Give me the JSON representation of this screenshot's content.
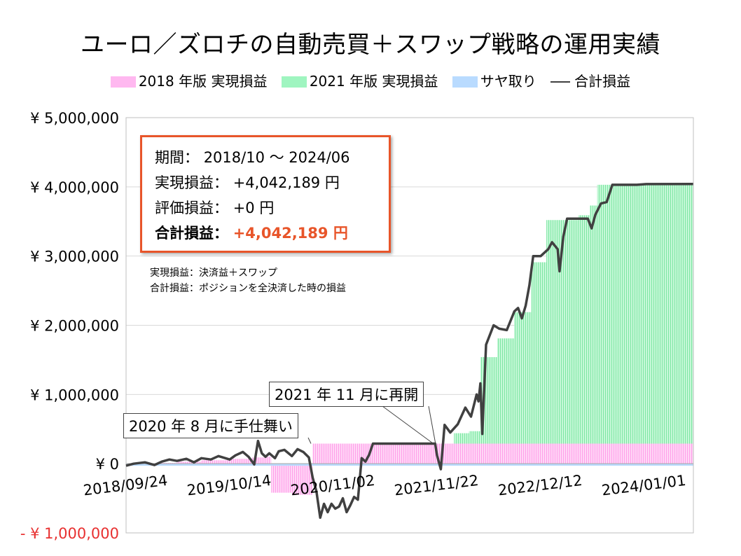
{
  "title": "ユーロ／ズロチの自動売買＋スワップ戦略の運用実績",
  "legend": [
    {
      "label": "2018 年版 実現損益",
      "color": "#ffb8f0"
    },
    {
      "label": "2021 年版 実現損益",
      "color": "#9ff5c0"
    },
    {
      "label": "サヤ取り",
      "color": "#b9dbff"
    },
    {
      "label": "合計損益",
      "color": "#404040"
    }
  ],
  "infobox": {
    "period_label": "期間：",
    "period_value": "2018/10 ～ 2024/06",
    "realized_label": "実現損益：",
    "realized_value": "+4,042,189 円",
    "unrealized_label": "評価損益：",
    "unrealized_value": "+0 円",
    "total_label": "合計損益：",
    "total_value": "+4,042,189 円"
  },
  "definitions": [
    "実現損益：決済益＋スワップ",
    "合計損益：ポジションを全決済した時の損益"
  ],
  "annotations": [
    {
      "label": "2020 年 8 月に手仕舞い"
    },
    {
      "label": "2021 年 11 月に再開"
    }
  ],
  "chart_data": {
    "type": "area",
    "ylim": [
      -1000000,
      5000000
    ],
    "y_ticks": [
      {
        "value": 5000000,
        "label": "¥ 5,000,000"
      },
      {
        "value": 4000000,
        "label": "¥ 4,000,000"
      },
      {
        "value": 3000000,
        "label": "¥ 3,000,000"
      },
      {
        "value": 2000000,
        "label": "¥ 2,000,000"
      },
      {
        "value": 1000000,
        "label": "¥ 1,000,000"
      },
      {
        "value": 0,
        "label": "¥ 0"
      },
      {
        "value": -1000000,
        "label": "- ¥ 1,000,000"
      }
    ],
    "x_ticks": [
      {
        "date": "2018-09-24",
        "label": "2018/09/24"
      },
      {
        "date": "2019-10-14",
        "label": "2019/10/14"
      },
      {
        "date": "2020-11-02",
        "label": "2020/11/02"
      },
      {
        "date": "2021-11-22",
        "label": "2021/11/22"
      },
      {
        "date": "2022-12-12",
        "label": "2022/12/12"
      },
      {
        "date": "2024-01-01",
        "label": "2024/01/01"
      }
    ],
    "xlim": [
      "2018-09-24",
      "2024-07-01"
    ],
    "grid": "horizontal",
    "series": [
      {
        "name": "2018 年版 実現損益",
        "color": "#ffb8f0",
        "points": [
          [
            "2018-09-24",
            0
          ],
          [
            "2019-01-14",
            10000
          ],
          [
            "2019-04-01",
            30000
          ],
          [
            "2019-07-01",
            50000
          ],
          [
            "2019-10-14",
            70000
          ],
          [
            "2020-01-06",
            90000
          ],
          [
            "2020-02-24",
            100000
          ],
          [
            "2020-03-16",
            -420000
          ],
          [
            "2020-06-01",
            -450000
          ],
          [
            "2020-08-03",
            -450000
          ],
          [
            "2020-08-17",
            290000
          ],
          [
            "2024-06-30",
            290000
          ]
        ]
      },
      {
        "name": "2021 年版 実現損益",
        "color": "#9ff5c0",
        "points": [
          [
            "2021-11-22",
            0
          ],
          [
            "2022-01-24",
            150000
          ],
          [
            "2022-03-21",
            180000
          ],
          [
            "2022-05-02",
            1250000
          ],
          [
            "2022-07-04",
            1520000
          ],
          [
            "2022-09-05",
            1900000
          ],
          [
            "2022-11-07",
            2620000
          ],
          [
            "2023-01-02",
            3230000
          ],
          [
            "2023-03-20",
            3230000
          ],
          [
            "2023-05-01",
            3300000
          ],
          [
            "2023-06-12",
            3440000
          ],
          [
            "2023-07-10",
            3740000
          ],
          [
            "2024-06-30",
            3750000
          ]
        ]
      },
      {
        "name": "サヤ取り",
        "color": "#b9dbff",
        "points": [
          [
            "2018-09-24",
            0
          ],
          [
            "2024-06-30",
            0
          ]
        ]
      },
      {
        "name": "合計損益",
        "color": "#404040",
        "points": [
          [
            "2018-09-24",
            -30000
          ],
          [
            "2018-10-22",
            0
          ],
          [
            "2018-12-03",
            20000
          ],
          [
            "2019-01-07",
            -20000
          ],
          [
            "2019-02-04",
            30000
          ],
          [
            "2019-03-04",
            60000
          ],
          [
            "2019-04-01",
            40000
          ],
          [
            "2019-05-06",
            70000
          ],
          [
            "2019-06-03",
            20000
          ],
          [
            "2019-07-01",
            80000
          ],
          [
            "2019-08-05",
            60000
          ],
          [
            "2019-09-02",
            110000
          ],
          [
            "2019-10-14",
            60000
          ],
          [
            "2019-11-04",
            120000
          ],
          [
            "2019-12-02",
            170000
          ],
          [
            "2019-12-23",
            100000
          ],
          [
            "2020-01-13",
            -10000
          ],
          [
            "2020-01-27",
            330000
          ],
          [
            "2020-02-10",
            150000
          ],
          [
            "2020-02-24",
            100000
          ],
          [
            "2020-03-09",
            150000
          ],
          [
            "2020-03-30",
            80000
          ],
          [
            "2020-04-13",
            180000
          ],
          [
            "2020-05-04",
            200000
          ],
          [
            "2020-06-01",
            110000
          ],
          [
            "2020-06-22",
            210000
          ],
          [
            "2020-07-13",
            170000
          ],
          [
            "2020-08-03",
            90000
          ],
          [
            "2020-08-17",
            -200000
          ],
          [
            "2020-08-31",
            -400000
          ],
          [
            "2020-09-14",
            -780000
          ],
          [
            "2020-09-28",
            -580000
          ],
          [
            "2020-10-12",
            -700000
          ],
          [
            "2020-10-26",
            -580000
          ],
          [
            "2020-11-09",
            -650000
          ],
          [
            "2020-11-23",
            -620000
          ],
          [
            "2020-12-07",
            -500000
          ],
          [
            "2020-12-21",
            -700000
          ],
          [
            "2021-01-04",
            -600000
          ],
          [
            "2021-01-18",
            -480000
          ],
          [
            "2021-02-01",
            -520000
          ],
          [
            "2021-02-15",
            80000
          ],
          [
            "2021-03-01",
            30000
          ],
          [
            "2021-03-15",
            130000
          ],
          [
            "2021-03-29",
            290000
          ],
          [
            "2021-07-05",
            290000
          ],
          [
            "2021-11-01",
            290000
          ],
          [
            "2021-11-15",
            290000
          ],
          [
            "2021-11-22",
            120000
          ],
          [
            "2021-12-06",
            -80000
          ],
          [
            "2021-12-20",
            560000
          ],
          [
            "2022-01-10",
            450000
          ],
          [
            "2022-02-07",
            570000
          ],
          [
            "2022-03-07",
            810000
          ],
          [
            "2022-03-28",
            680000
          ],
          [
            "2022-04-18",
            1000000
          ],
          [
            "2022-04-25",
            900000
          ],
          [
            "2022-05-02",
            1160000
          ],
          [
            "2022-05-09",
            430000
          ],
          [
            "2022-05-23",
            1720000
          ],
          [
            "2022-06-20",
            2000000
          ],
          [
            "2022-07-11",
            1950000
          ],
          [
            "2022-08-08",
            1930000
          ],
          [
            "2022-09-05",
            2200000
          ],
          [
            "2022-09-19",
            2250000
          ],
          [
            "2022-10-03",
            2100000
          ],
          [
            "2022-10-17",
            2280000
          ],
          [
            "2022-10-31",
            2580000
          ],
          [
            "2022-11-14",
            3000000
          ],
          [
            "2022-12-12",
            3000000
          ],
          [
            "2023-01-09",
            3100000
          ],
          [
            "2023-01-23",
            3200000
          ],
          [
            "2023-02-13",
            3100000
          ],
          [
            "2023-02-20",
            2780000
          ],
          [
            "2023-03-06",
            3280000
          ],
          [
            "2023-03-20",
            3540000
          ],
          [
            "2023-06-05",
            3540000
          ],
          [
            "2023-06-19",
            3400000
          ],
          [
            "2023-07-03",
            3600000
          ],
          [
            "2023-07-24",
            3760000
          ],
          [
            "2023-08-14",
            3780000
          ],
          [
            "2023-09-04",
            4030000
          ],
          [
            "2023-12-04",
            4030000
          ],
          [
            "2024-01-08",
            4040000
          ],
          [
            "2024-06-30",
            4042189
          ]
        ]
      }
    ]
  }
}
